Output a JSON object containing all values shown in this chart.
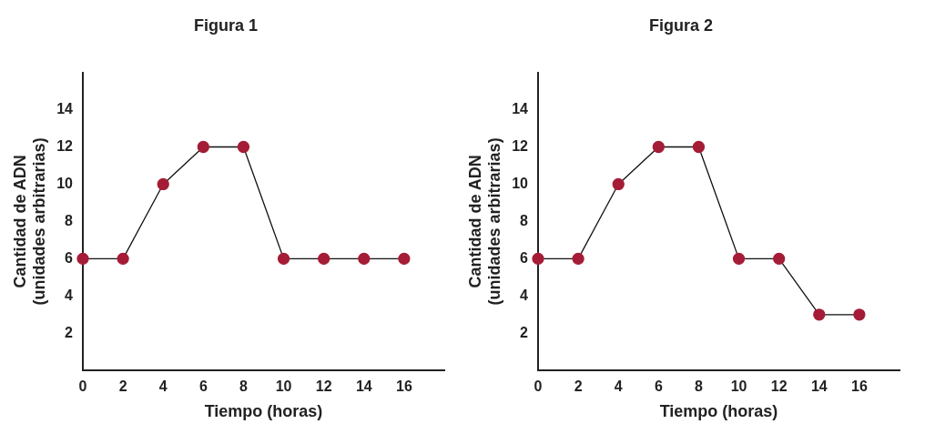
{
  "chart_data": [
    {
      "type": "line",
      "title": "Figura 1",
      "xlabel": "Tiempo (horas)",
      "ylabel": "Cantidad de ADN\n(unidades arbitrarias)",
      "x": [
        0,
        2,
        4,
        6,
        8,
        10,
        12,
        14,
        16
      ],
      "series": [
        {
          "color": "#a51c36",
          "values": [
            6,
            6,
            10,
            12,
            12,
            6,
            6,
            6,
            6
          ]
        }
      ],
      "xlim": [
        0,
        18
      ],
      "xticks": [
        0,
        2,
        4,
        6,
        8,
        10,
        12,
        14,
        16
      ],
      "ylim": [
        0,
        16
      ],
      "yticks": [
        2,
        4,
        6,
        8,
        10,
        12,
        14
      ],
      "grid": false,
      "legend": false,
      "marker": "circle",
      "line_style": "solid"
    },
    {
      "type": "line",
      "title": "Figura 2",
      "xlabel": "Tiempo (horas)",
      "ylabel": "Cantidad de ADN\n(unidades arbitrarias)",
      "x": [
        0,
        2,
        4,
        6,
        8,
        10,
        12,
        14,
        16
      ],
      "series": [
        {
          "color": "#a51c36",
          "values": [
            6,
            6,
            10,
            12,
            12,
            6,
            6,
            3,
            3
          ]
        }
      ],
      "xlim": [
        0,
        18
      ],
      "xticks": [
        0,
        2,
        4,
        6,
        8,
        10,
        12,
        14,
        16
      ],
      "ylim": [
        0,
        16
      ],
      "yticks": [
        2,
        4,
        6,
        8,
        10,
        12,
        14
      ],
      "grid": false,
      "legend": false,
      "marker": "circle",
      "line_style": "solid"
    }
  ]
}
